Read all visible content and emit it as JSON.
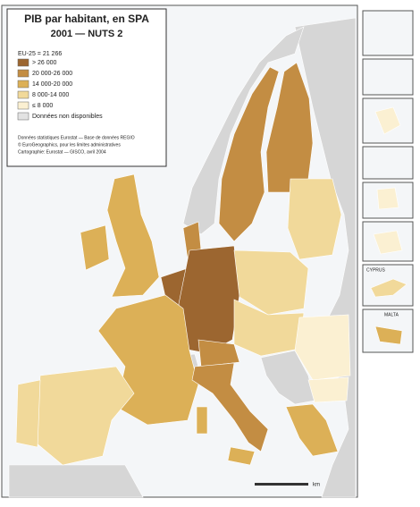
{
  "title": "PIB par habitant, en SPA",
  "subtitle": "2001 — NUTS 2",
  "legend": {
    "heading": "EU-25 = 21 266",
    "items": [
      {
        "label": "> 26 000",
        "color": "#9c6630"
      },
      {
        "label": "20 000-26 000",
        "color": "#c38d43"
      },
      {
        "label": "14 000-20 000",
        "color": "#dcb057"
      },
      {
        "label": "8 000-14 000",
        "color": "#f1d99a"
      },
      {
        "label": "≤ 8 000",
        "color": "#fbf0d2"
      },
      {
        "label": "Données non disponibles",
        "color": "#e2e2e2"
      }
    ]
  },
  "sources": [
    "Données statistiques Eurostat — Base de données REGIO",
    "© EuroGeographics, pour les limites administratives",
    "Cartographie: Eurostat — GISCO, avril 2004"
  ],
  "insets": [
    "CYPRUS",
    "MALTA"
  ],
  "scale": "km"
}
